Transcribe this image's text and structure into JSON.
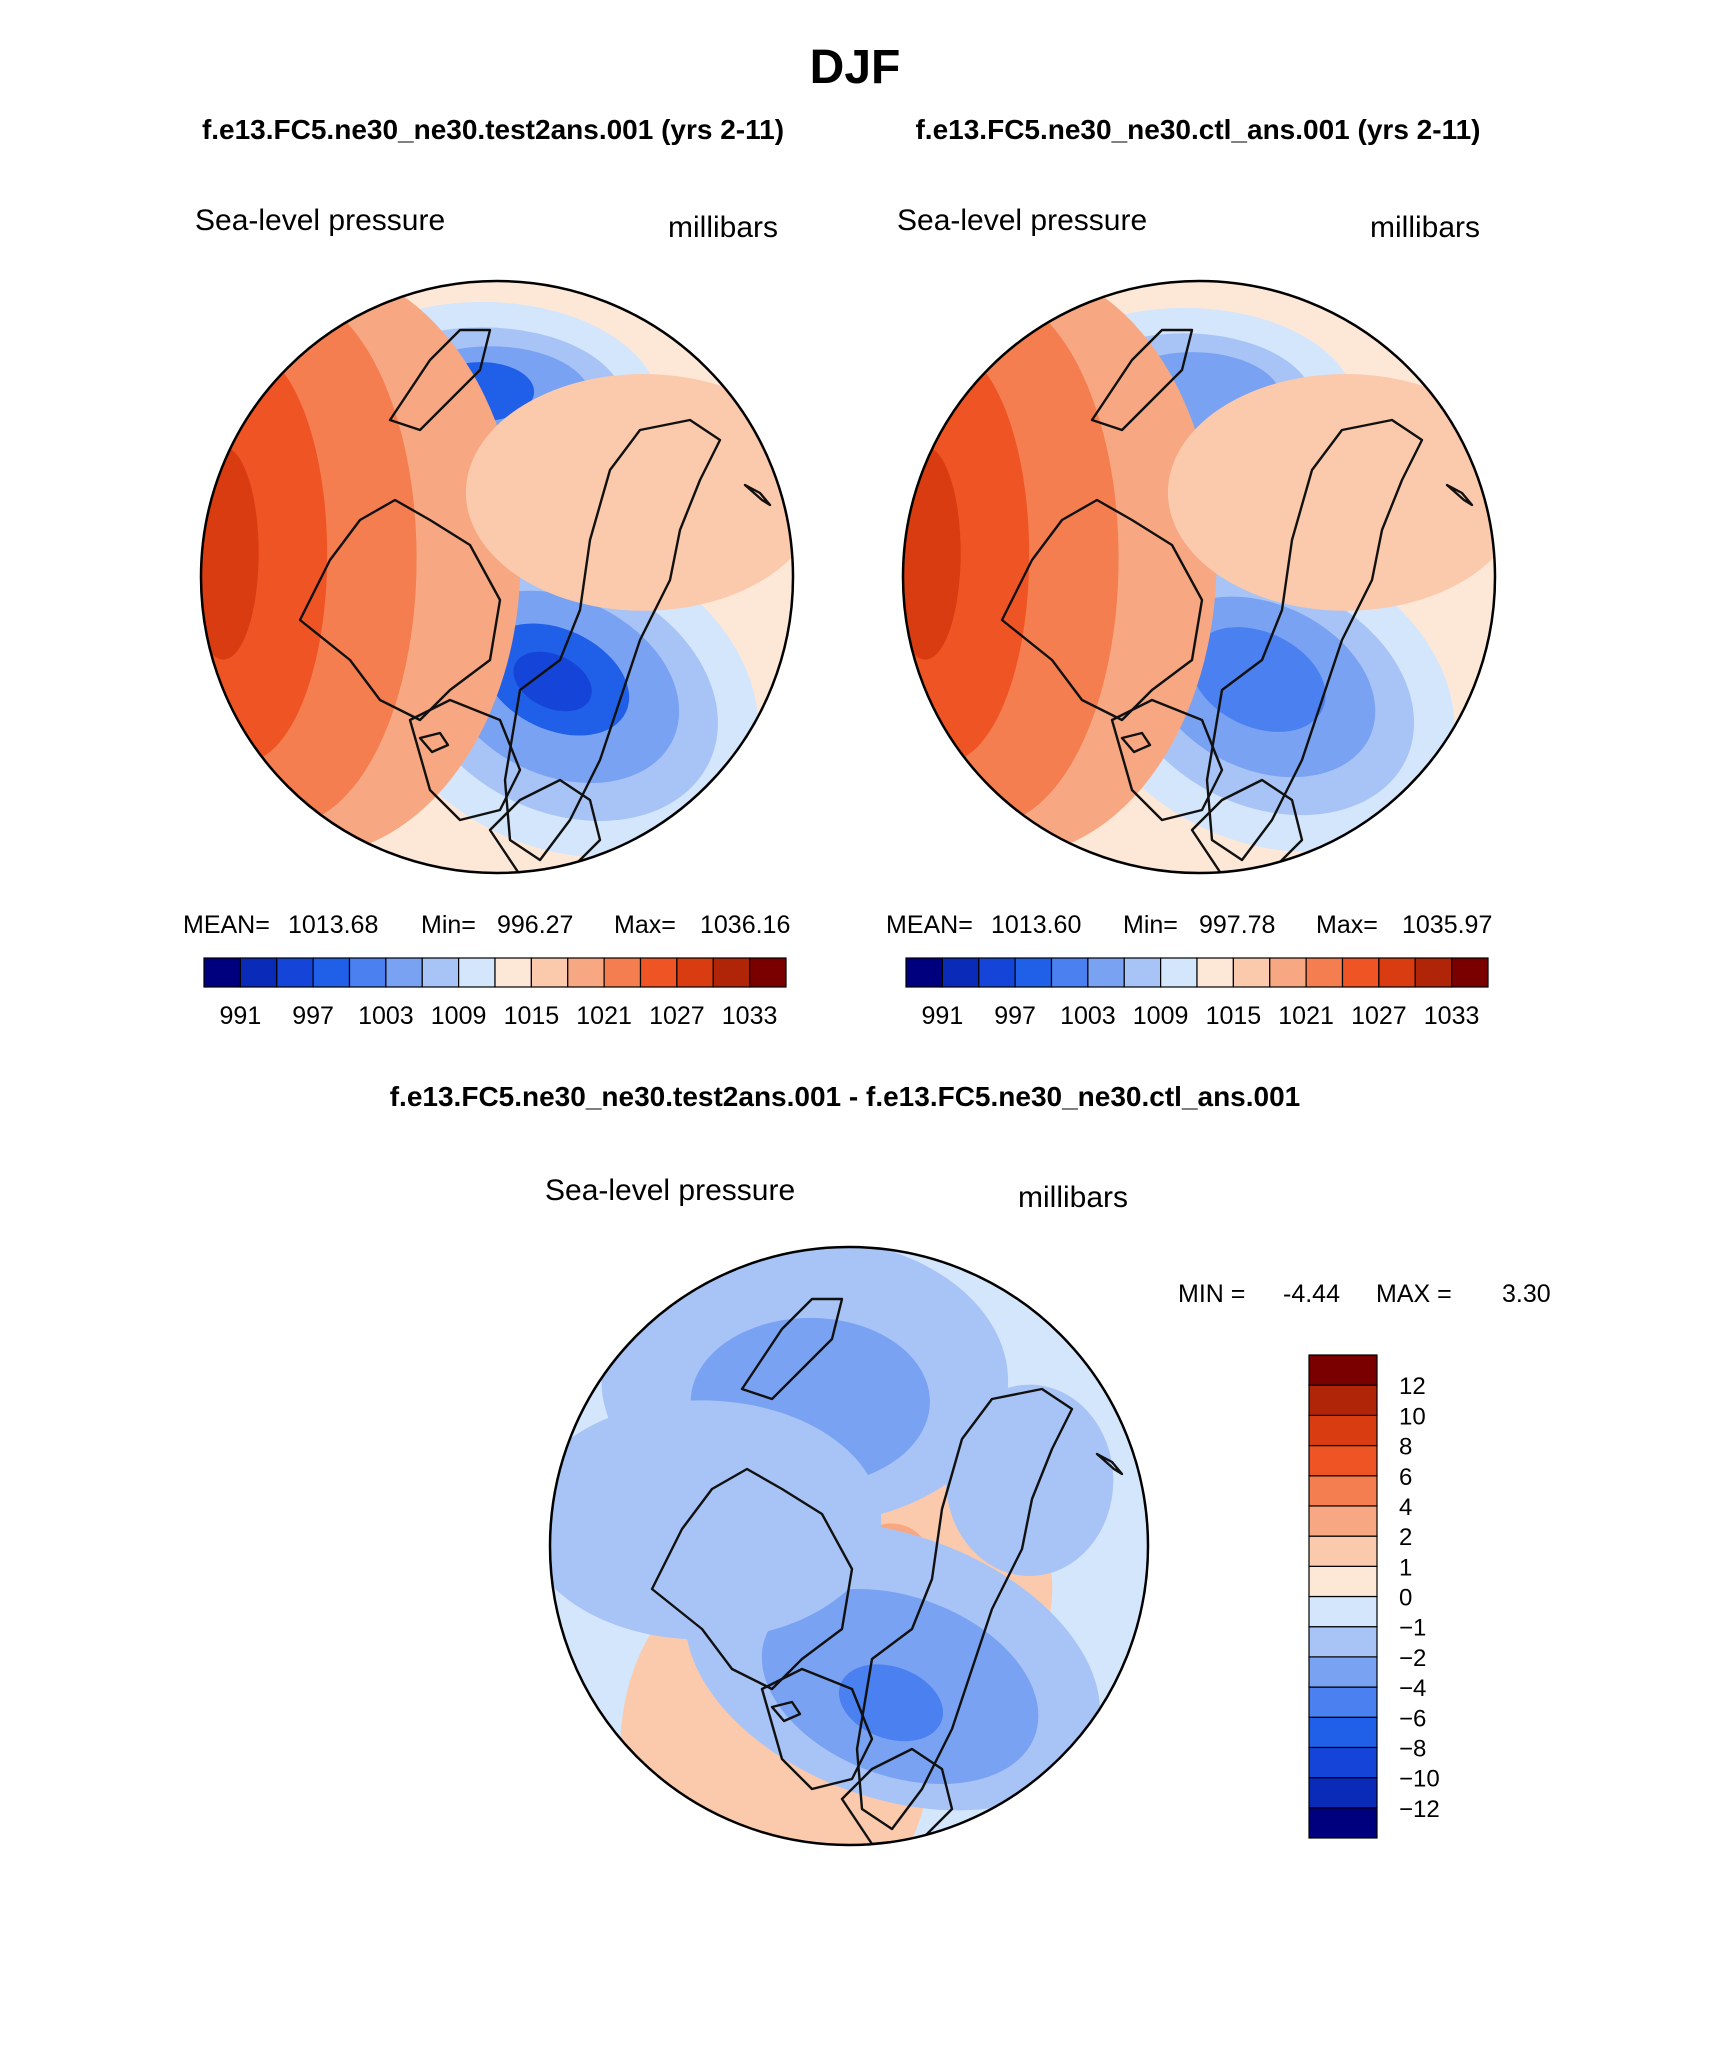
{
  "page": {
    "title": "DJF",
    "model_label": "f.e13.FC5.ne30_ne30.test2ans.001 (yrs 2-11)",
    "control_label": "f.e13.FC5.ne30_ne30.ctl_ans.001 (yrs 2-11)",
    "diff_label": "f.e13.FC5.ne30_ne30.test2ans.001 - f.e13.FC5.ne30_ne30.ctl_ans.001"
  },
  "colors": {
    "abs_scale": [
      "#00007f",
      "#0a2ab8",
      "#1445d8",
      "#2060e8",
      "#4a80f0",
      "#7aa2f2",
      "#a8c4f6",
      "#d4e6fc",
      "#fde8d8",
      "#fbcaad",
      "#f7a882",
      "#f47e50",
      "#ef5524",
      "#d83c10",
      "#b02408",
      "#7a0000"
    ],
    "diff_scale": [
      "#00007f",
      "#0a2ab8",
      "#1445d8",
      "#2060e8",
      "#4a80f0",
      "#7aa2f2",
      "#a8c4f6",
      "#d4e6fc",
      "#fde8d8",
      "#fbcaad",
      "#f7a882",
      "#f47e50",
      "#ef5524",
      "#d83c10",
      "#b02408",
      "#7a0000"
    ]
  },
  "chart_data": [
    {
      "type": "heatmap",
      "panel": "model",
      "projection": "north-polar-stereographic",
      "title": "Sea-level pressure",
      "units": "millibars",
      "stats_text": {
        "mean_label": "MEAN=",
        "mean": "1013.68",
        "min_label": "Min=",
        "min": "996.27",
        "max_label": "Max=",
        "max": "1036.16"
      },
      "contour_levels": [
        991,
        994,
        997,
        1000,
        1003,
        1006,
        1009,
        1012,
        1015,
        1018,
        1021,
        1024,
        1027,
        1030,
        1033
      ],
      "tick_labels": [
        "991",
        "997",
        "1003",
        "1009",
        "1015",
        "1021",
        "1027",
        "1033"
      ],
      "tick_level_index": [
        0,
        2,
        4,
        6,
        8,
        10,
        12,
        14
      ],
      "bands": [
        {
          "bin": 7,
          "shape": "blob",
          "lon": -30,
          "lat": 58,
          "w": 0.34,
          "h": 0.26,
          "rot": 25
        },
        {
          "bin": 6,
          "shape": "blob",
          "lon": -30,
          "lat": 58,
          "w": 0.27,
          "h": 0.2,
          "rot": 25
        },
        {
          "bin": 5,
          "shape": "blob",
          "lon": -30,
          "lat": 60,
          "w": 0.21,
          "h": 0.15,
          "rot": 25
        },
        {
          "bin": 3,
          "shape": "blob",
          "lon": -30,
          "lat": 62,
          "w": 0.13,
          "h": 0.085,
          "rot": 25
        },
        {
          "bin": 2,
          "shape": "blob",
          "lon": -28,
          "lat": 62,
          "w": 0.07,
          "h": 0.045,
          "rot": 25
        },
        {
          "bin": 7,
          "shape": "blob",
          "lon": 175,
          "lat": 50,
          "w": 0.3,
          "h": 0.18,
          "rot": 0
        },
        {
          "bin": 6,
          "shape": "blob",
          "lon": 175,
          "lat": 49,
          "w": 0.24,
          "h": 0.13,
          "rot": 0
        },
        {
          "bin": 5,
          "shape": "blob",
          "lon": 178,
          "lat": 48,
          "w": 0.17,
          "h": 0.09,
          "rot": 0
        },
        {
          "bin": 3,
          "shape": "blob",
          "lon": 175,
          "lat": 46,
          "w": 0.09,
          "h": 0.05,
          "rot": 0
        },
        {
          "bin": 10,
          "shape": "blob",
          "lon": 95,
          "lat": 45,
          "w": 0.36,
          "h": 0.5,
          "rot": 0
        },
        {
          "bin": 11,
          "shape": "blob",
          "lon": 95,
          "lat": 40,
          "w": 0.22,
          "h": 0.45,
          "rot": 0
        },
        {
          "bin": 12,
          "shape": "blob",
          "lon": 95,
          "lat": 30,
          "w": 0.14,
          "h": 0.35,
          "rot": 0
        },
        {
          "bin": 13,
          "shape": "blob",
          "lon": 95,
          "lat": 25,
          "w": 0.06,
          "h": 0.18,
          "rot": 0
        },
        {
          "bin": 9,
          "shape": "blob",
          "lon": -120,
          "lat": 50,
          "w": 0.3,
          "h": 0.2,
          "rot": 0
        }
      ]
    },
    {
      "type": "heatmap",
      "panel": "control",
      "projection": "north-polar-stereographic",
      "title": "Sea-level pressure",
      "units": "millibars",
      "stats_text": {
        "mean_label": "MEAN=",
        "mean": "1013.60",
        "min_label": "Min=",
        "min": "997.78",
        "max_label": "Max=",
        "max": "1035.97"
      },
      "contour_levels": [
        991,
        994,
        997,
        1000,
        1003,
        1006,
        1009,
        1012,
        1015,
        1018,
        1021,
        1024,
        1027,
        1030,
        1033
      ],
      "tick_labels": [
        "991",
        "997",
        "1003",
        "1009",
        "1015",
        "1021",
        "1027",
        "1033"
      ],
      "tick_level_index": [
        0,
        2,
        4,
        6,
        8,
        10,
        12,
        14
      ],
      "bands": [
        {
          "bin": 7,
          "shape": "blob",
          "lon": -30,
          "lat": 58,
          "w": 0.33,
          "h": 0.25,
          "rot": 25
        },
        {
          "bin": 6,
          "shape": "blob",
          "lon": -30,
          "lat": 58,
          "w": 0.26,
          "h": 0.19,
          "rot": 25
        },
        {
          "bin": 5,
          "shape": "blob",
          "lon": -30,
          "lat": 60,
          "w": 0.2,
          "h": 0.14,
          "rot": 25
        },
        {
          "bin": 4,
          "shape": "blob",
          "lon": -30,
          "lat": 62,
          "w": 0.12,
          "h": 0.08,
          "rot": 25
        },
        {
          "bin": 7,
          "shape": "blob",
          "lon": 175,
          "lat": 50,
          "w": 0.29,
          "h": 0.17,
          "rot": 0
        },
        {
          "bin": 6,
          "shape": "blob",
          "lon": 175,
          "lat": 49,
          "w": 0.22,
          "h": 0.12,
          "rot": 0
        },
        {
          "bin": 5,
          "shape": "blob",
          "lon": 178,
          "lat": 48,
          "w": 0.15,
          "h": 0.08,
          "rot": 0
        },
        {
          "bin": 10,
          "shape": "blob",
          "lon": 95,
          "lat": 45,
          "w": 0.35,
          "h": 0.5,
          "rot": 0
        },
        {
          "bin": 11,
          "shape": "blob",
          "lon": 95,
          "lat": 40,
          "w": 0.22,
          "h": 0.45,
          "rot": 0
        },
        {
          "bin": 12,
          "shape": "blob",
          "lon": 95,
          "lat": 30,
          "w": 0.14,
          "h": 0.35,
          "rot": 0
        },
        {
          "bin": 13,
          "shape": "blob",
          "lon": 95,
          "lat": 25,
          "w": 0.06,
          "h": 0.18,
          "rot": 0
        },
        {
          "bin": 9,
          "shape": "blob",
          "lon": -120,
          "lat": 50,
          "w": 0.3,
          "h": 0.2,
          "rot": 0
        }
      ]
    },
    {
      "type": "heatmap",
      "panel": "difference",
      "projection": "north-polar-stereographic",
      "title": "Sea-level pressure",
      "units": "millibars",
      "stats_text": {
        "min_label": "MIN =",
        "min": "-4.44",
        "max_label": "MAX =",
        "max": "3.30"
      },
      "contour_levels": [
        -12,
        -10,
        -8,
        -6,
        -4,
        -2,
        -1,
        0,
        1,
        2,
        4,
        6,
        8,
        10,
        12
      ],
      "tick_labels": [
        "12",
        "10",
        "8",
        "6",
        "4",
        "2",
        "1",
        "0",
        "−1",
        "−2",
        "−4",
        "−6",
        "−8",
        "−10",
        "−12"
      ],
      "bands": [
        {
          "bin": 9,
          "shape": "blob",
          "lon": 0,
          "lat": 80,
          "w": 0.34,
          "h": 0.28,
          "rot": 0
        },
        {
          "bin": 10,
          "shape": "blob",
          "lon": 90,
          "lat": 82,
          "w": 0.06,
          "h": 0.05,
          "rot": 0
        },
        {
          "bin": 10,
          "shape": "blob",
          "lon": -80,
          "lat": 80,
          "w": 0.06,
          "h": 0.05,
          "rot": 0
        },
        {
          "bin": 9,
          "shape": "blob",
          "lon": 20,
          "lat": 40,
          "w": 0.26,
          "h": 0.32,
          "rot": 0
        },
        {
          "bin": 6,
          "shape": "blob",
          "lon": -20,
          "lat": 60,
          "w": 0.36,
          "h": 0.22,
          "rot": 20
        },
        {
          "bin": 5,
          "shape": "blob",
          "lon": -20,
          "lat": 55,
          "w": 0.24,
          "h": 0.15,
          "rot": 20
        },
        {
          "bin": 4,
          "shape": "blob",
          "lon": -15,
          "lat": 52,
          "w": 0.09,
          "h": 0.06,
          "rot": 20
        },
        {
          "bin": 6,
          "shape": "blob",
          "lon": 165,
          "lat": 50,
          "w": 0.34,
          "h": 0.24,
          "rot": 0
        },
        {
          "bin": 5,
          "shape": "blob",
          "lon": 165,
          "lat": 55,
          "w": 0.2,
          "h": 0.14,
          "rot": 0
        },
        {
          "bin": 6,
          "shape": "blob",
          "lon": -110,
          "lat": 45,
          "w": 0.14,
          "h": 0.16,
          "rot": 0
        },
        {
          "bin": 6,
          "shape": "blob",
          "lon": 100,
          "lat": 55,
          "w": 0.3,
          "h": 0.2,
          "rot": 0
        }
      ]
    }
  ]
}
